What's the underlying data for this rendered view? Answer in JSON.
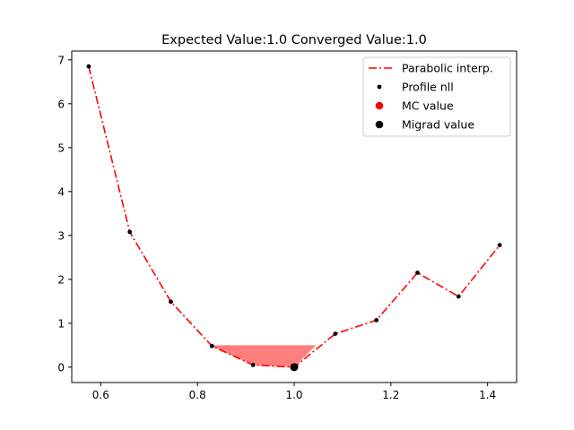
{
  "chart_data": {
    "type": "line",
    "title": "Expected Value:1.0 Converged Value:1.0",
    "xlabel": "",
    "ylabel": "",
    "xlim": [
      0.54,
      1.46
    ],
    "ylim": [
      -0.35,
      7.2
    ],
    "xticks": [
      0.6,
      0.8,
      1.0,
      1.2,
      1.4
    ],
    "xtick_labels": [
      "0.6",
      "0.8",
      "1.0",
      "1.2",
      "1.4"
    ],
    "yticks": [
      0,
      1,
      2,
      3,
      4,
      5,
      6,
      7
    ],
    "ytick_labels": [
      "0",
      "1",
      "2",
      "3",
      "4",
      "5",
      "6",
      "7"
    ],
    "grid": false,
    "legend_position": "top-right",
    "series": [
      {
        "name": "Parabolic interp.",
        "kind": "line",
        "style": "dash-dot",
        "color": "#ff0000",
        "x": [
          0.575,
          0.66,
          0.745,
          0.83,
          0.915,
          1.0,
          1.085,
          1.17,
          1.255,
          1.34,
          1.425
        ],
        "y": [
          6.85,
          3.08,
          1.49,
          0.48,
          0.05,
          0.0,
          0.76,
          1.07,
          2.15,
          1.61,
          2.78
        ]
      },
      {
        "name": "Profile nll",
        "kind": "points",
        "color": "#000000",
        "x": [
          0.575,
          0.66,
          0.745,
          0.83,
          0.915,
          1.085,
          1.17,
          1.255,
          1.34,
          1.425
        ],
        "y": [
          6.85,
          3.08,
          1.49,
          0.48,
          0.05,
          0.76,
          1.07,
          2.15,
          1.61,
          2.78
        ]
      },
      {
        "name": "MC value",
        "kind": "marker",
        "color": "#ff0000",
        "x": [
          1.0
        ],
        "y": [
          0.0
        ]
      },
      {
        "name": "Migrad value",
        "kind": "marker",
        "color": "#000000",
        "x": [
          1.0
        ],
        "y": [
          0.0
        ]
      }
    ],
    "interval_fill": {
      "color": "#ff0000",
      "opacity": 0.5,
      "y_level": 0.5,
      "x_start": 0.83,
      "x_end": 1.045,
      "curve_x": [
        0.83,
        0.915,
        1.0,
        1.045
      ],
      "curve_y": [
        0.48,
        0.05,
        0.0,
        0.5
      ]
    }
  }
}
